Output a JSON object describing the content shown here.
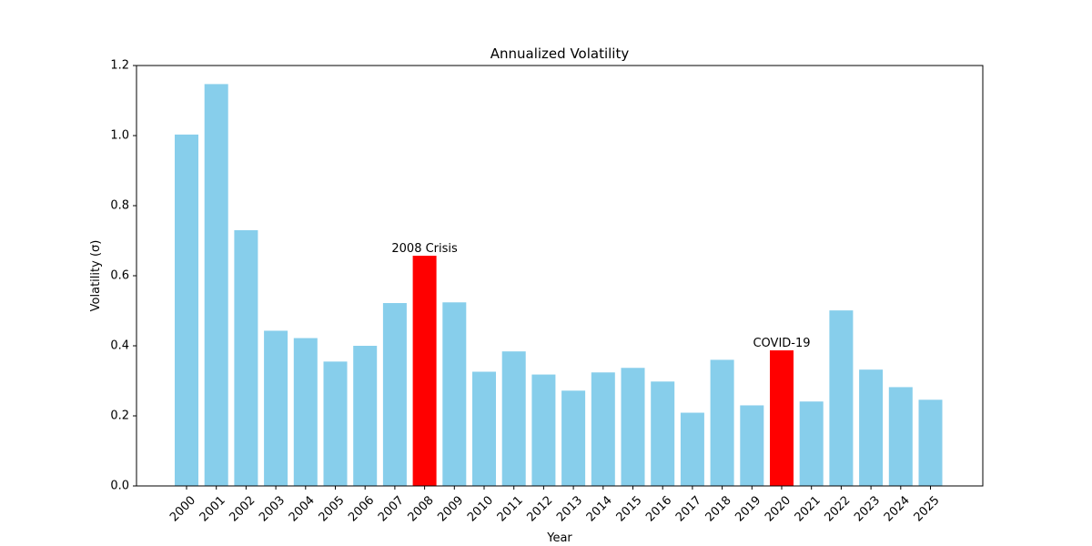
{
  "chart_data": {
    "type": "bar",
    "title": "Annualized Volatility",
    "xlabel": "Year",
    "ylabel": "Volatility (σ)",
    "ylim": [
      0,
      1.2
    ],
    "yticks": [
      0.0,
      0.2,
      0.4,
      0.6,
      0.8,
      1.0,
      1.2
    ],
    "ytick_labels": [
      "0.0",
      "0.2",
      "0.4",
      "0.6",
      "0.8",
      "1.0",
      "1.2"
    ],
    "categories": [
      "2000",
      "2001",
      "2002",
      "2003",
      "2004",
      "2005",
      "2006",
      "2007",
      "2008",
      "2009",
      "2010",
      "2011",
      "2012",
      "2013",
      "2014",
      "2015",
      "2016",
      "2017",
      "2018",
      "2019",
      "2020",
      "2021",
      "2022",
      "2023",
      "2024",
      "2025"
    ],
    "values": [
      1.003,
      1.147,
      0.73,
      0.443,
      0.422,
      0.355,
      0.4,
      0.522,
      0.657,
      0.524,
      0.326,
      0.384,
      0.318,
      0.272,
      0.324,
      0.337,
      0.298,
      0.209,
      0.36,
      0.23,
      0.387,
      0.241,
      0.501,
      0.332,
      0.282,
      0.246
    ],
    "colors": {
      "default": "#87ceeb",
      "highlight": "#ff0000"
    },
    "highlights": [
      "2008",
      "2020"
    ],
    "annotations": [
      {
        "category": "2008",
        "text": "2008 Crisis"
      },
      {
        "category": "2020",
        "text": "COVID-19"
      }
    ],
    "grid": false,
    "legend": "none"
  }
}
